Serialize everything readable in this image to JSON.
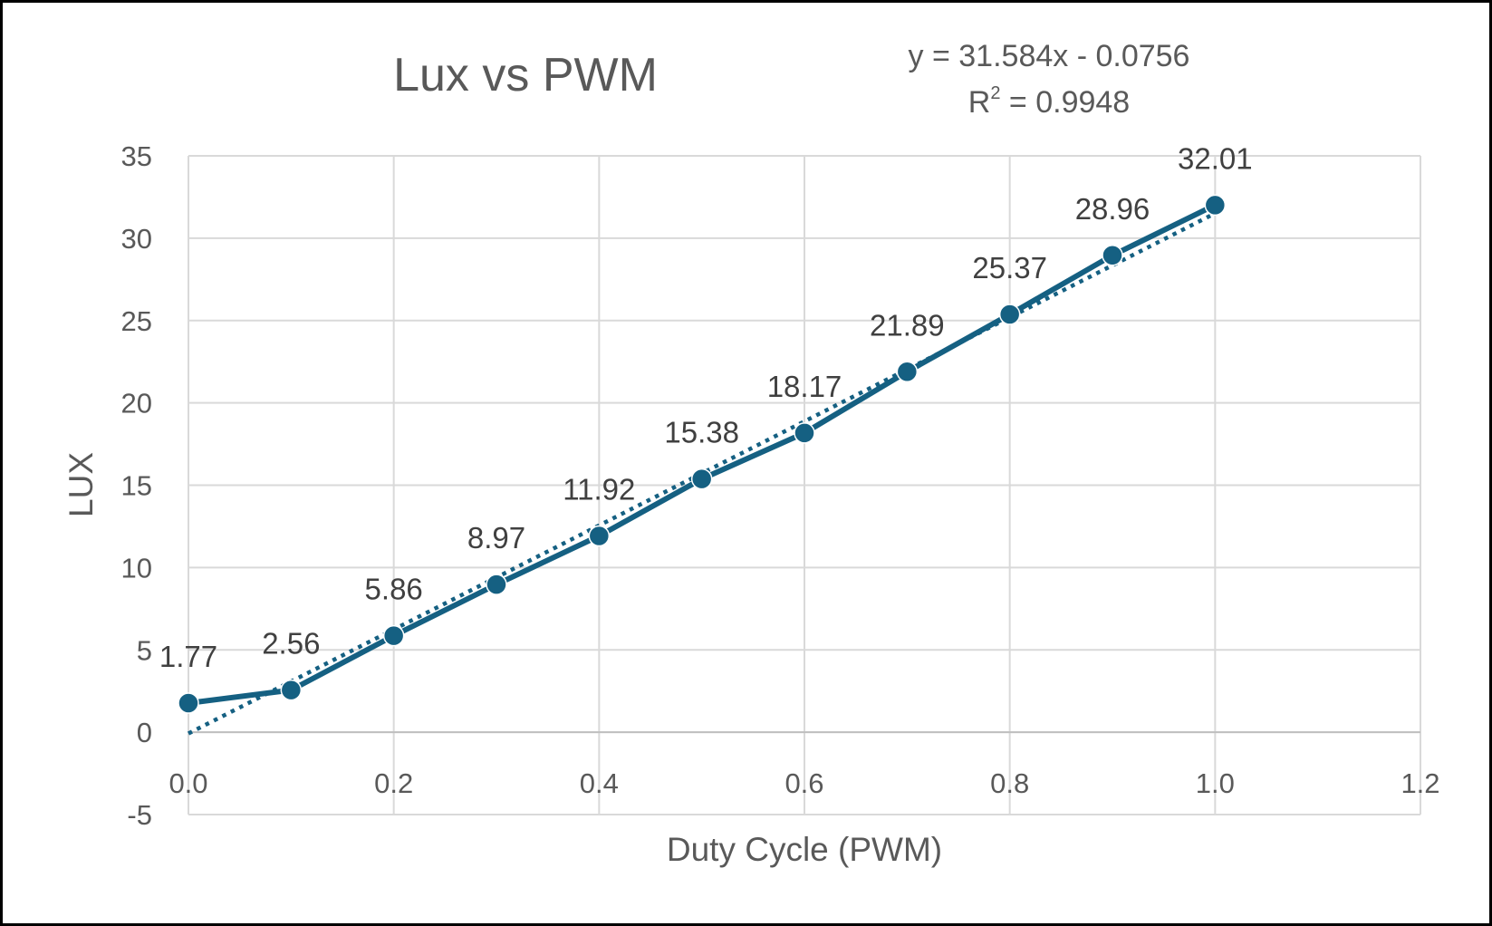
{
  "chart_data": {
    "type": "line",
    "title": "Lux vs PWM",
    "xlabel": "Duty Cycle (PWM)",
    "ylabel": "LUX",
    "xlim": [
      0.0,
      1.2
    ],
    "ylim": [
      -5,
      35
    ],
    "x_ticks": [
      "0.0",
      "0.2",
      "0.4",
      "0.6",
      "0.8",
      "1.0",
      "1.2"
    ],
    "x_tick_values": [
      0.0,
      0.2,
      0.4,
      0.6,
      0.8,
      1.0,
      1.2
    ],
    "y_ticks": [
      "-5",
      "0",
      "5",
      "10",
      "15",
      "20",
      "25",
      "30",
      "35"
    ],
    "y_tick_values": [
      -5,
      0,
      5,
      10,
      15,
      20,
      25,
      30,
      35
    ],
    "grid": true,
    "legend": "none",
    "x": [
      0.0,
      0.1,
      0.2,
      0.3,
      0.4,
      0.5,
      0.6,
      0.7,
      0.8,
      0.9,
      1.0
    ],
    "series": [
      {
        "values": [
          1.77,
          2.56,
          5.86,
          8.97,
          11.92,
          15.38,
          18.17,
          21.89,
          25.37,
          28.96,
          32.01
        ],
        "data_labels": [
          "1.77",
          "2.56",
          "5.86",
          "8.97",
          "11.92",
          "15.38",
          "18.17",
          "21.89",
          "25.37",
          "28.96",
          "32.01"
        ],
        "color": "#156082",
        "marker": "circle"
      }
    ],
    "trendline": {
      "type": "linear",
      "slope": 31.584,
      "intercept": -0.0756,
      "x_range": [
        0.0,
        1.0
      ],
      "style": "dotted",
      "color": "#156082",
      "equation_text": "y = 31.584x - 0.0756",
      "r2_prefix": "R",
      "r2_exponent": "2",
      "r2_suffix": " = 0.9948"
    },
    "colors": {
      "grid": "#d9d9d9",
      "text": "#595959",
      "label": "#404040"
    }
  }
}
